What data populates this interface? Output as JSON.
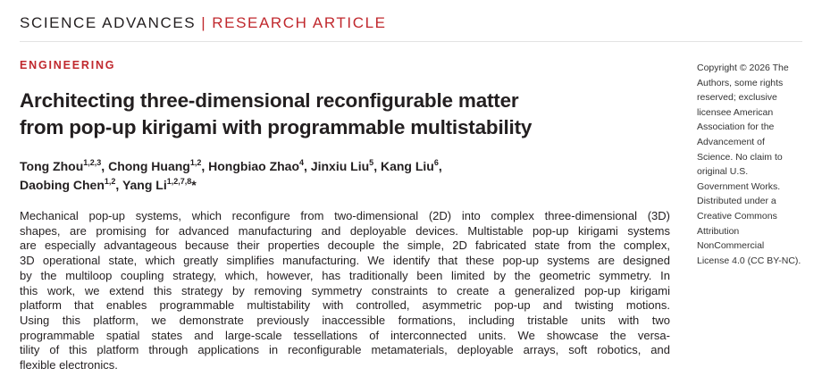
{
  "header": {
    "journal": "SCIENCE ADVANCES",
    "separator": "|",
    "article_type": "RESEARCH ARTICLE"
  },
  "section": "ENGINEERING",
  "title": [
    "Architecting three-dimensional reconfigurable matter",
    "from pop-up kirigami with programmable multistability"
  ],
  "authors": [
    [
      {
        "name": "Tong Zhou",
        "sup": "1,2,3",
        "after": ","
      },
      {
        "name": "Chong Huang",
        "sup": "1,2",
        "after": ","
      },
      {
        "name": "Hongbiao Zhao",
        "sup": "4",
        "after": ","
      },
      {
        "name": "Jinxiu Liu",
        "sup": "5",
        "after": ","
      },
      {
        "name": "Kang Liu",
        "sup": "6",
        "after": ","
      }
    ],
    [
      {
        "name": "Daobing Chen",
        "sup": "1,2",
        "after": ","
      },
      {
        "name": "Yang Li",
        "sup": "1,2,7,8",
        "after": "*"
      }
    ]
  ],
  "abstract": [
    "Mechanical pop-up systems, which reconfigure from two-dimensional (2D) into complex three-dimensional (3D)",
    "shapes, are promising for advanced manufacturing and deployable devices. Multistable pop-up kirigami systems",
    "are especially advantageous because their properties decouple the simple, 2D fabricated state from the complex,",
    "3D operational state, which greatly simplifies manufacturing. We identify that these pop-up systems are designed",
    "by the multiloop coupling strategy, which, however, has traditionally been limited by the geometric symmetry. In",
    "this work, we extend this strategy by removing symmetry constraints to create a generalized pop-up kirigami",
    "platform that enables programmable multistability with controlled, asymmetric pop-up and twisting motions.",
    "Using this platform, we demonstrate previously inaccessible formations, including tristable units with two",
    "programmable spatial states and large-scale tessellations of interconnected units. We showcase the versa-",
    "tility of this platform through applications in reconfigurable metamaterials, deployable arrays, soft robotics, and",
    "flexible electronics."
  ],
  "copyright": [
    "Copyright © 2026 The",
    "Authors, some rights",
    "reserved; exclusive",
    "licensee American",
    "Association for the",
    "Advancement of",
    "Science. No claim to",
    "original U.S.",
    "Government Works.",
    "Distributed under a",
    "Creative Commons",
    "Attribution",
    "NonCommercial",
    "License 4.0 (CC BY-NC)."
  ]
}
